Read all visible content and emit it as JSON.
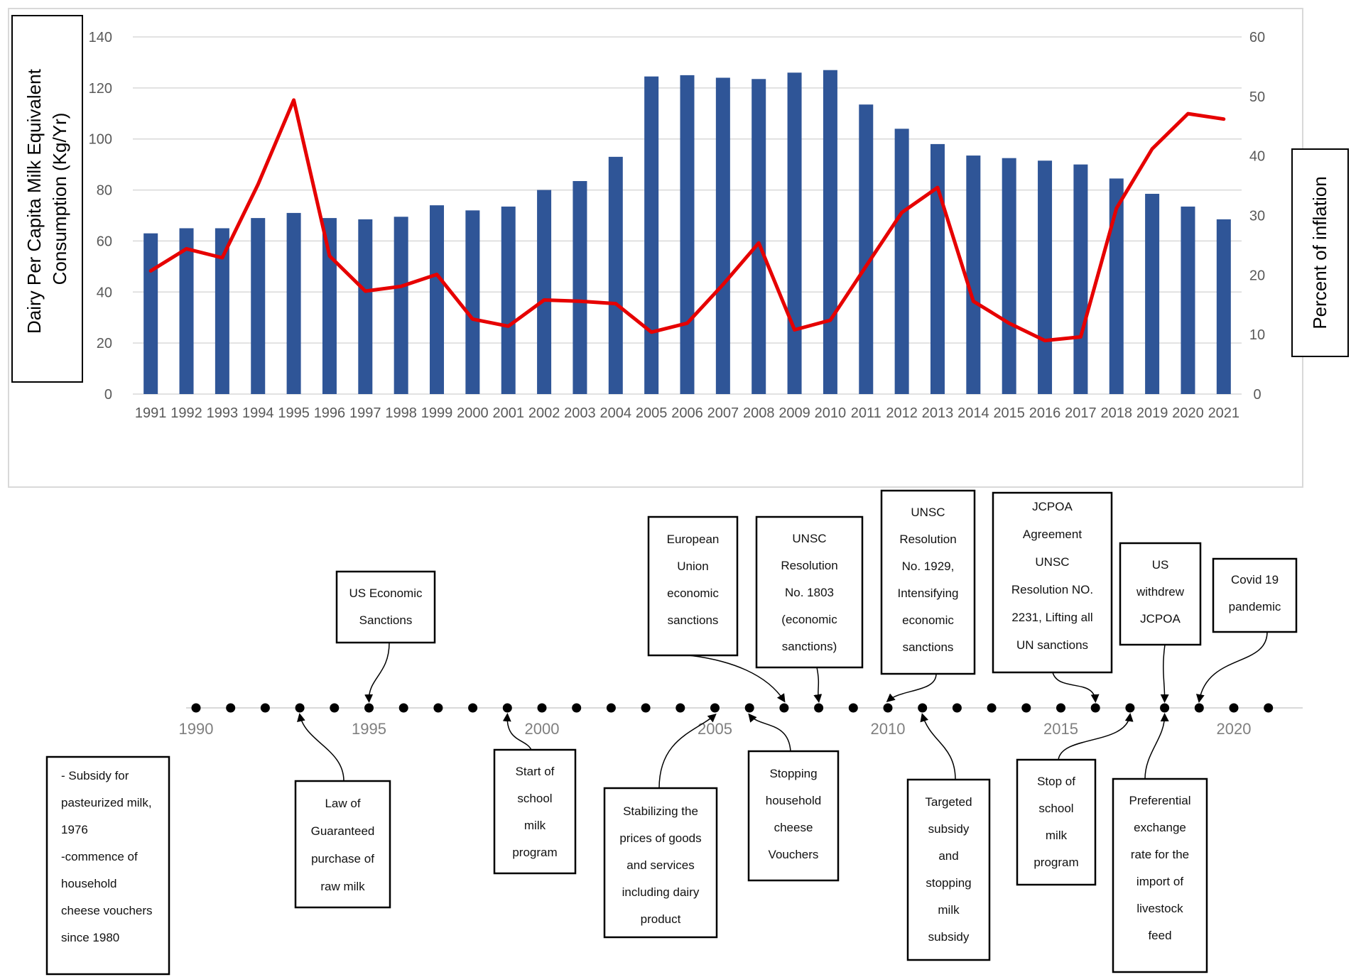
{
  "chart_data": {
    "type": "bar+line",
    "categories": [
      "1991",
      "1992",
      "1993",
      "1994",
      "1995",
      "1996",
      "1997",
      "1998",
      "1999",
      "2000",
      "2001",
      "2002",
      "2003",
      "2004",
      "2005",
      "2006",
      "2007",
      "2008",
      "2009",
      "2010",
      "2011",
      "2012",
      "2013",
      "2014",
      "2015",
      "2016",
      "2017",
      "2018",
      "2019",
      "2020",
      "2021"
    ],
    "series": [
      {
        "axis": "left",
        "kind": "bar",
        "color": "#2F5597",
        "values": [
          63,
          65,
          65,
          69,
          71,
          69,
          68.5,
          69.5,
          74,
          72,
          73.5,
          80,
          83.5,
          93,
          124.5,
          125,
          124,
          123.5,
          126,
          127,
          113.5,
          104,
          98,
          93.5,
          92.5,
          91.5,
          90,
          84.5,
          78.5,
          73.5,
          68.5
        ]
      },
      {
        "axis": "right",
        "kind": "line",
        "color": "#E60000",
        "values": [
          20.7,
          24.4,
          22.9,
          35.2,
          49.4,
          23.2,
          17.3,
          18.1,
          20.1,
          12.6,
          11.4,
          15.8,
          15.6,
          15.2,
          10.4,
          11.9,
          18.4,
          25.4,
          10.8,
          12.4,
          21.5,
          30.5,
          34.7,
          15.6,
          11.9,
          9.0,
          9.6,
          31.2,
          41.2,
          47.1,
          46.2
        ]
      }
    ],
    "ylabel": "Dairy Per Capita  Milk Equivalent Consumption (Kg/Yr)",
    "y2label": "Percent of inflation",
    "ylim": [
      0,
      140
    ],
    "y2lim": [
      0,
      60
    ],
    "yticks": [
      "0",
      "20",
      "40",
      "60",
      "80",
      "100",
      "120",
      "140"
    ],
    "y2ticks": [
      "0",
      "10",
      "20",
      "30",
      "40",
      "50",
      "60"
    ],
    "grid": true
  },
  "timeline": {
    "start_year": 1990,
    "end_year": 2021,
    "year_labels": [
      "1990",
      "1995",
      "2000",
      "2005",
      "2010",
      "2015",
      "2020"
    ],
    "events": [
      {
        "id": "subsidy-1976",
        "lines": [
          "- Subsidy for",
          "pasteurized milk,",
          "1976",
          "",
          "-commence of",
          "household",
          "cheese vouchers",
          "since 1980"
        ],
        "position": "below"
      },
      {
        "id": "us-sanctions",
        "year": 1995,
        "lines": [
          "US Economic",
          "Sanctions"
        ],
        "position": "above"
      },
      {
        "id": "law-guaranteed",
        "year": 1993,
        "lines": [
          "Law of",
          "Guaranteed",
          "purchase of",
          "raw milk"
        ],
        "position": "below"
      },
      {
        "id": "school-milk-start",
        "year": 1999,
        "lines": [
          "Start of",
          "school",
          "milk",
          "program"
        ],
        "position": "below"
      },
      {
        "id": "eu-sanctions",
        "year": 2007,
        "lines": [
          "European",
          "Union",
          "economic",
          "sanctions"
        ],
        "position": "above"
      },
      {
        "id": "stabilizing-prices",
        "year": 2005,
        "lines": [
          "Stabilizing the",
          "prices of goods",
          "and services",
          "including dairy",
          "product"
        ],
        "position": "below"
      },
      {
        "id": "unsc-1803",
        "year": 2008,
        "lines": [
          "UNSC",
          "Resolution",
          "No. 1803",
          "(economic",
          "sanctions)"
        ],
        "position": "above"
      },
      {
        "id": "cheese-vouchers-stop",
        "year": 2006,
        "lines": [
          "Stopping",
          "household",
          "cheese",
          "Vouchers"
        ],
        "position": "below"
      },
      {
        "id": "unsc-1929",
        "year": 2010,
        "lines": [
          "UNSC",
          "Resolution",
          "No. 1929,",
          "Intensifying",
          "economic",
          "sanctions"
        ],
        "position": "above"
      },
      {
        "id": "targeted-subsidy",
        "year": 2011,
        "lines": [
          "Targeted",
          "subsidy",
          "and",
          "stopping",
          "milk",
          "subsidy"
        ],
        "position": "below"
      },
      {
        "id": "jcpoa",
        "year": 2016,
        "lines": [
          "JCPOA",
          "Agreement",
          "",
          "UNSC",
          "Resolution NO.",
          "2231, Lifting all",
          "UN sanctions"
        ],
        "position": "above"
      },
      {
        "id": "school-milk-stop",
        "year": 2017,
        "lines": [
          "Stop of",
          "school",
          "milk",
          "program"
        ],
        "position": "below"
      },
      {
        "id": "us-withdrew",
        "year": 2018,
        "lines": [
          "US",
          "withdrew",
          "JCPOA"
        ],
        "position": "above"
      },
      {
        "id": "preferential-exchange",
        "year": 2018,
        "lines": [
          "Preferential",
          "exchange",
          "rate for the",
          "import of",
          "livestock",
          "feed"
        ],
        "position": "below"
      },
      {
        "id": "covid",
        "year": 2019,
        "lines": [
          "Covid 19",
          "pandemic"
        ],
        "position": "above"
      }
    ]
  },
  "colors": {
    "bar": "#2F5597",
    "line": "#E60000",
    "grid": "#D9D9D9",
    "frame": "#D9D9D9",
    "text": "#595959"
  }
}
